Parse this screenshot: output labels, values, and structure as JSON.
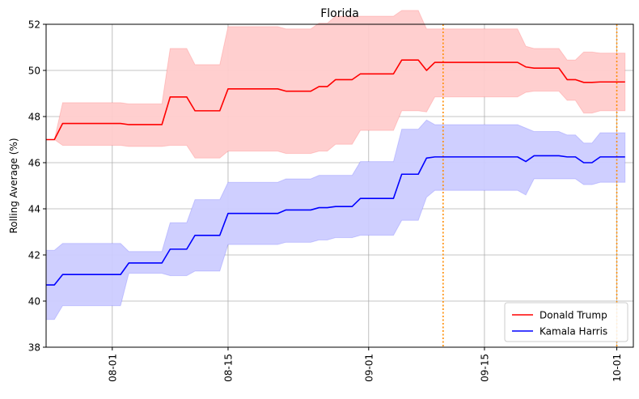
{
  "chart_data": {
    "type": "line",
    "title": "Florida",
    "xlabel": "",
    "ylabel": "Rolling Average (%)",
    "x_ticks": [
      "2024-08-01",
      "2024-08-15",
      "2024-09-01",
      "2024-09-15",
      "2024-10-01"
    ],
    "x_tick_labels": [
      "08-01",
      "08-15",
      "09-01",
      "09-15",
      "10-01"
    ],
    "y_ticks": [
      38,
      40,
      42,
      44,
      46,
      48,
      50,
      52
    ],
    "xlim": [
      "2024-07-24",
      "2024-10-03"
    ],
    "ylim": [
      38,
      52
    ],
    "grid": true,
    "legend_position": "lower-right",
    "vlines": {
      "color": "#ff8c00",
      "style": "dotted",
      "x": [
        "2024-09-10",
        "2024-10-01"
      ]
    },
    "series": [
      {
        "name": "Donald Trump",
        "color": "#ff0000",
        "band_color": "#ffcccc",
        "x": [
          "2024-07-24",
          "2024-07-25",
          "2024-07-26",
          "2024-07-27",
          "2024-07-28",
          "2024-07-29",
          "2024-07-30",
          "2024-07-31",
          "2024-08-01",
          "2024-08-02",
          "2024-08-03",
          "2024-08-04",
          "2024-08-05",
          "2024-08-06",
          "2024-08-07",
          "2024-08-08",
          "2024-08-09",
          "2024-08-10",
          "2024-08-11",
          "2024-08-12",
          "2024-08-13",
          "2024-08-14",
          "2024-08-15",
          "2024-08-16",
          "2024-08-17",
          "2024-08-18",
          "2024-08-19",
          "2024-08-20",
          "2024-08-21",
          "2024-08-22",
          "2024-08-23",
          "2024-08-24",
          "2024-08-25",
          "2024-08-26",
          "2024-08-27",
          "2024-08-28",
          "2024-08-29",
          "2024-08-30",
          "2024-08-31",
          "2024-09-01",
          "2024-09-02",
          "2024-09-03",
          "2024-09-04",
          "2024-09-05",
          "2024-09-06",
          "2024-09-07",
          "2024-09-08",
          "2024-09-09",
          "2024-09-10",
          "2024-09-11",
          "2024-09-12",
          "2024-09-13",
          "2024-09-14",
          "2024-09-15",
          "2024-09-16",
          "2024-09-17",
          "2024-09-18",
          "2024-09-19",
          "2024-09-20",
          "2024-09-21",
          "2024-09-22",
          "2024-09-23",
          "2024-09-24",
          "2024-09-25",
          "2024-09-26",
          "2024-09-27",
          "2024-09-28",
          "2024-09-29",
          "2024-09-30",
          "2024-10-01",
          "2024-10-02"
        ],
        "values": [
          47.0,
          47.0,
          47.7,
          47.7,
          47.7,
          47.7,
          47.7,
          47.7,
          47.7,
          47.7,
          47.65,
          47.65,
          47.65,
          47.65,
          47.65,
          48.85,
          48.85,
          48.85,
          48.25,
          48.25,
          48.25,
          48.25,
          49.2,
          49.2,
          49.2,
          49.2,
          49.2,
          49.2,
          49.2,
          49.1,
          49.1,
          49.1,
          49.1,
          49.3,
          49.3,
          49.6,
          49.6,
          49.6,
          49.85,
          49.85,
          49.85,
          49.85,
          49.85,
          50.45,
          50.45,
          50.45,
          50.0,
          50.35,
          50.35,
          50.35,
          50.35,
          50.35,
          50.35,
          50.35,
          50.35,
          50.35,
          50.35,
          50.35,
          50.15,
          50.1,
          50.1,
          50.1,
          50.1,
          49.6,
          49.6,
          49.48,
          49.48,
          49.5,
          49.5,
          49.5,
          49.5
        ],
        "lower": [
          47.0,
          47.0,
          46.75,
          46.75,
          46.75,
          46.75,
          46.75,
          46.75,
          46.75,
          46.75,
          46.7,
          46.7,
          46.7,
          46.7,
          46.7,
          46.75,
          46.75,
          46.75,
          46.2,
          46.2,
          46.2,
          46.2,
          46.5,
          46.5,
          46.5,
          46.5,
          46.5,
          46.5,
          46.5,
          46.4,
          46.4,
          46.4,
          46.4,
          46.5,
          46.5,
          46.8,
          46.8,
          46.8,
          47.4,
          47.4,
          47.4,
          47.4,
          47.4,
          48.25,
          48.25,
          48.25,
          48.2,
          48.85,
          48.85,
          48.85,
          48.85,
          48.85,
          48.85,
          48.85,
          48.85,
          48.85,
          48.85,
          48.85,
          49.05,
          49.1,
          49.1,
          49.1,
          49.1,
          48.7,
          48.7,
          48.15,
          48.15,
          48.25,
          48.25,
          48.25,
          48.25
        ],
        "upper": [
          47.0,
          47.0,
          48.6,
          48.6,
          48.6,
          48.6,
          48.6,
          48.6,
          48.6,
          48.6,
          48.55,
          48.55,
          48.55,
          48.55,
          48.55,
          50.95,
          50.95,
          50.95,
          50.25,
          50.25,
          50.25,
          50.25,
          51.9,
          51.9,
          51.9,
          51.9,
          51.9,
          51.9,
          51.9,
          51.8,
          51.8,
          51.8,
          51.8,
          52.05,
          52.05,
          52.35,
          52.35,
          52.35,
          52.35,
          52.35,
          52.35,
          52.35,
          52.35,
          52.6,
          52.6,
          52.6,
          51.8,
          51.8,
          51.8,
          51.8,
          51.8,
          51.8,
          51.8,
          51.8,
          51.8,
          51.8,
          51.8,
          51.8,
          51.05,
          50.95,
          50.95,
          50.95,
          50.95,
          50.45,
          50.45,
          50.8,
          50.8,
          50.75,
          50.75,
          50.75,
          50.75
        ]
      },
      {
        "name": "Kamala Harris",
        "color": "#0000ff",
        "band_color": "#ccccff",
        "x": [
          "2024-07-24",
          "2024-07-25",
          "2024-07-26",
          "2024-07-27",
          "2024-07-28",
          "2024-07-29",
          "2024-07-30",
          "2024-07-31",
          "2024-08-01",
          "2024-08-02",
          "2024-08-03",
          "2024-08-04",
          "2024-08-05",
          "2024-08-06",
          "2024-08-07",
          "2024-08-08",
          "2024-08-09",
          "2024-08-10",
          "2024-08-11",
          "2024-08-12",
          "2024-08-13",
          "2024-08-14",
          "2024-08-15",
          "2024-08-16",
          "2024-08-17",
          "2024-08-18",
          "2024-08-19",
          "2024-08-20",
          "2024-08-21",
          "2024-08-22",
          "2024-08-23",
          "2024-08-24",
          "2024-08-25",
          "2024-08-26",
          "2024-08-27",
          "2024-08-28",
          "2024-08-29",
          "2024-08-30",
          "2024-08-31",
          "2024-09-01",
          "2024-09-02",
          "2024-09-03",
          "2024-09-04",
          "2024-09-05",
          "2024-09-06",
          "2024-09-07",
          "2024-09-08",
          "2024-09-09",
          "2024-09-10",
          "2024-09-11",
          "2024-09-12",
          "2024-09-13",
          "2024-09-14",
          "2024-09-15",
          "2024-09-16",
          "2024-09-17",
          "2024-09-18",
          "2024-09-19",
          "2024-09-20",
          "2024-09-21",
          "2024-09-22",
          "2024-09-23",
          "2024-09-24",
          "2024-09-25",
          "2024-09-26",
          "2024-09-27",
          "2024-09-28",
          "2024-09-29",
          "2024-09-30",
          "2024-10-01",
          "2024-10-02"
        ],
        "values": [
          40.7,
          40.7,
          41.15,
          41.15,
          41.15,
          41.15,
          41.15,
          41.15,
          41.15,
          41.15,
          41.65,
          41.65,
          41.65,
          41.65,
          41.65,
          42.25,
          42.25,
          42.25,
          42.85,
          42.85,
          42.85,
          42.85,
          43.8,
          43.8,
          43.8,
          43.8,
          43.8,
          43.8,
          43.8,
          43.95,
          43.95,
          43.95,
          43.95,
          44.05,
          44.05,
          44.1,
          44.1,
          44.1,
          44.45,
          44.45,
          44.45,
          44.45,
          44.45,
          45.5,
          45.5,
          45.5,
          46.2,
          46.25,
          46.25,
          46.25,
          46.25,
          46.25,
          46.25,
          46.25,
          46.25,
          46.25,
          46.25,
          46.25,
          46.05,
          46.3,
          46.3,
          46.3,
          46.3,
          46.25,
          46.25,
          46.0,
          46.0,
          46.25,
          46.25,
          46.25,
          46.25
        ],
        "lower": [
          39.2,
          39.2,
          39.8,
          39.8,
          39.8,
          39.8,
          39.8,
          39.8,
          39.8,
          39.8,
          41.2,
          41.2,
          41.2,
          41.2,
          41.2,
          41.1,
          41.1,
          41.1,
          41.3,
          41.3,
          41.3,
          41.3,
          42.45,
          42.45,
          42.45,
          42.45,
          42.45,
          42.45,
          42.45,
          42.55,
          42.55,
          42.55,
          42.55,
          42.65,
          42.65,
          42.75,
          42.75,
          42.75,
          42.85,
          42.85,
          42.85,
          42.85,
          42.85,
          43.5,
          43.5,
          43.5,
          44.5,
          44.8,
          44.8,
          44.8,
          44.8,
          44.8,
          44.8,
          44.8,
          44.8,
          44.8,
          44.8,
          44.8,
          44.6,
          45.3,
          45.3,
          45.3,
          45.3,
          45.3,
          45.3,
          45.05,
          45.05,
          45.15,
          45.15,
          45.15,
          45.15
        ],
        "upper": [
          42.2,
          42.2,
          42.5,
          42.5,
          42.5,
          42.5,
          42.5,
          42.5,
          42.5,
          42.5,
          42.15,
          42.15,
          42.15,
          42.15,
          42.15,
          43.4,
          43.4,
          43.4,
          44.4,
          44.4,
          44.4,
          44.4,
          45.15,
          45.15,
          45.15,
          45.15,
          45.15,
          45.15,
          45.15,
          45.3,
          45.3,
          45.3,
          45.3,
          45.45,
          45.45,
          45.45,
          45.45,
          45.45,
          46.05,
          46.05,
          46.05,
          46.05,
          46.05,
          47.45,
          47.45,
          47.45,
          47.85,
          47.65,
          47.65,
          47.65,
          47.65,
          47.65,
          47.65,
          47.65,
          47.65,
          47.65,
          47.65,
          47.65,
          47.5,
          47.35,
          47.35,
          47.35,
          47.35,
          47.2,
          47.2,
          46.85,
          46.85,
          47.3,
          47.3,
          47.3,
          47.3
        ]
      }
    ]
  }
}
